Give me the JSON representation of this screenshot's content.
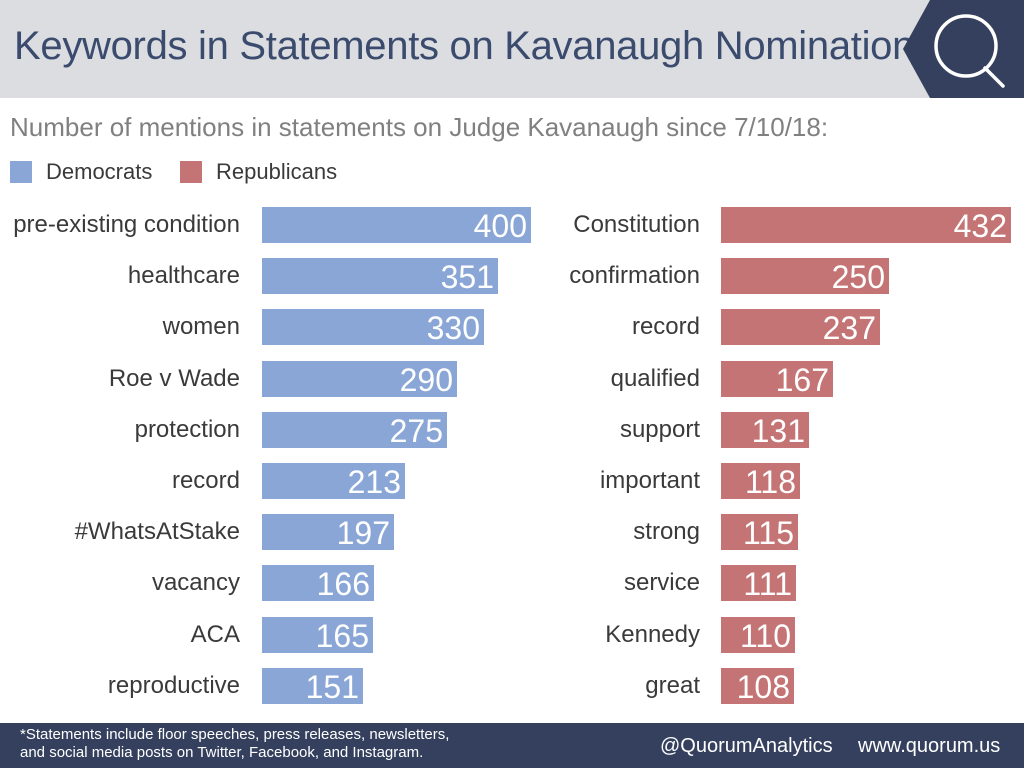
{
  "title": "Keywords in Statements on Kavanaugh Nomination",
  "subtitle": "Number of mentions in statements on Judge Kavanaugh since 7/10/18:",
  "logo_letter": "Q",
  "legend": {
    "democrats": "Democrats",
    "republicans": "Republicans"
  },
  "footer": {
    "note_line1": "*Statements include floor speeches, press releases, newsletters,",
    "note_line2": "and social media posts on Twitter, Facebook, and Instagram.",
    "handle": "@QuorumAnalytics",
    "website": "www.quorum.us"
  },
  "colors": {
    "democrats": "#8aa6d6",
    "republicans": "#c47474",
    "header_bg": "#dcdde1",
    "title": "#3a4b6e",
    "footer_bg": "#34405d"
  },
  "chart_data": [
    {
      "type": "bar",
      "orientation": "horizontal",
      "series": [
        {
          "name": "Democrats",
          "color": "#8aa6d6",
          "values": [
            400,
            351,
            330,
            290,
            275,
            213,
            197,
            166,
            165,
            151
          ]
        }
      ],
      "categories": [
        "pre-existing condition",
        "healthcare",
        "women",
        "Roe v Wade",
        "protection",
        "record",
        "#WhatsAtStake",
        "vacancy",
        "ACA",
        "reproductive"
      ],
      "values": [
        400,
        351,
        330,
        290,
        275,
        213,
        197,
        166,
        165,
        151
      ]
    },
    {
      "type": "bar",
      "orientation": "horizontal",
      "series": [
        {
          "name": "Republicans",
          "color": "#c47474",
          "values": [
            432,
            250,
            237,
            167,
            131,
            118,
            115,
            111,
            110,
            108
          ]
        }
      ],
      "categories": [
        "Constitution",
        "confirmation",
        "record",
        "qualified",
        "support",
        "important",
        "strong",
        "service",
        "Kennedy",
        "great"
      ],
      "values": [
        432,
        250,
        237,
        167,
        131,
        118,
        115,
        111,
        110,
        108
      ]
    }
  ]
}
